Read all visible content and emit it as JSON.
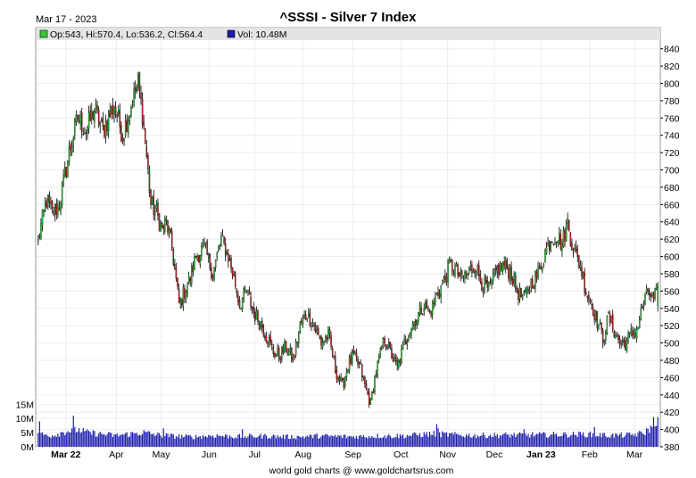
{
  "header": {
    "date": "Mar 17 - 2023",
    "title": "^SSSI - Silver 7 Index"
  },
  "legend": {
    "ohlc": "Op:543, Hi:570.4, Lo:536.2, Cl:564.4",
    "volume": "Vol: 10.48M"
  },
  "footer": "world gold charts @ www.goldchartsrus.com",
  "colors": {
    "up": "#33cc33",
    "down": "#cc2222",
    "volume": "#1a1aaa",
    "grid": "#e6eef4",
    "plot_bg": "#ffffff",
    "legend_bg": "#e4e4e4"
  },
  "chart_data": {
    "type": "candlestick",
    "title": "^SSSI - Silver 7 Index",
    "price_axis": {
      "min": 380,
      "max": 850,
      "ticks": [
        380,
        400,
        420,
        440,
        460,
        480,
        500,
        520,
        540,
        560,
        580,
        600,
        620,
        640,
        660,
        680,
        700,
        720,
        740,
        760,
        780,
        800,
        820,
        840
      ]
    },
    "volume_axis": {
      "min": 0,
      "max": 17000000,
      "ticks": [
        {
          "value": 0,
          "label": "0M"
        },
        {
          "value": 5000000,
          "label": "5M"
        },
        {
          "value": 10000000,
          "label": "10M"
        },
        {
          "value": 15000000,
          "label": "15M"
        }
      ]
    },
    "x_labels": [
      {
        "label": "Mar 22",
        "bold": true,
        "pos": 0.047
      },
      {
        "label": "Apr",
        "bold": false,
        "pos": 0.128
      },
      {
        "label": "May",
        "bold": false,
        "pos": 0.2
      },
      {
        "label": "Jun",
        "bold": false,
        "pos": 0.277
      },
      {
        "label": "Jul",
        "bold": false,
        "pos": 0.35
      },
      {
        "label": "Aug",
        "bold": false,
        "pos": 0.428
      },
      {
        "label": "Sep",
        "bold": false,
        "pos": 0.508
      },
      {
        "label": "Oct",
        "bold": false,
        "pos": 0.585
      },
      {
        "label": "Nov",
        "bold": false,
        "pos": 0.66
      },
      {
        "label": "Dec",
        "bold": false,
        "pos": 0.735
      },
      {
        "label": "Jan 23",
        "bold": true,
        "pos": 0.81
      },
      {
        "label": "Feb",
        "bold": false,
        "pos": 0.888
      },
      {
        "label": "Mar",
        "bold": false,
        "pos": 0.96
      }
    ],
    "close_path": [
      [
        0,
        620
      ],
      [
        6,
        665
      ],
      [
        10,
        650
      ],
      [
        15,
        660
      ],
      [
        22,
        720
      ],
      [
        28,
        760
      ],
      [
        34,
        745
      ],
      [
        40,
        770
      ],
      [
        46,
        745
      ],
      [
        54,
        775
      ],
      [
        60,
        740
      ],
      [
        67,
        780
      ],
      [
        71,
        800
      ],
      [
        74,
        765
      ],
      [
        77,
        715
      ],
      [
        80,
        660
      ],
      [
        84,
        650
      ],
      [
        88,
        630
      ],
      [
        91,
        640
      ],
      [
        95,
        610
      ],
      [
        100,
        545
      ],
      [
        104,
        560
      ],
      [
        108,
        575
      ],
      [
        112,
        600
      ],
      [
        118,
        610
      ],
      [
        124,
        580
      ],
      [
        130,
        620
      ],
      [
        135,
        600
      ],
      [
        139,
        575
      ],
      [
        143,
        545
      ],
      [
        148,
        560
      ],
      [
        153,
        535
      ],
      [
        159,
        520
      ],
      [
        163,
        505
      ],
      [
        167,
        490
      ],
      [
        171,
        485
      ],
      [
        176,
        495
      ],
      [
        181,
        480
      ],
      [
        186,
        520
      ],
      [
        191,
        535
      ],
      [
        196,
        520
      ],
      [
        201,
        500
      ],
      [
        206,
        510
      ],
      [
        211,
        470
      ],
      [
        216,
        450
      ],
      [
        220,
        475
      ],
      [
        224,
        485
      ],
      [
        229,
        470
      ],
      [
        233,
        445
      ],
      [
        236,
        430
      ],
      [
        239,
        460
      ],
      [
        242,
        480
      ],
      [
        246,
        505
      ],
      [
        250,
        490
      ],
      [
        255,
        470
      ],
      [
        260,
        500
      ],
      [
        265,
        520
      ],
      [
        269,
        530
      ],
      [
        274,
        545
      ],
      [
        278,
        535
      ],
      [
        283,
        555
      ],
      [
        288,
        570
      ],
      [
        292,
        590
      ],
      [
        296,
        585
      ],
      [
        300,
        575
      ],
      [
        305,
        580
      ],
      [
        310,
        590
      ],
      [
        315,
        570
      ],
      [
        320,
        560
      ],
      [
        326,
        585
      ],
      [
        331,
        590
      ],
      [
        336,
        580
      ],
      [
        340,
        560
      ],
      [
        345,
        550
      ],
      [
        350,
        570
      ],
      [
        355,
        580
      ],
      [
        360,
        605
      ],
      [
        364,
        620
      ],
      [
        368,
        625
      ],
      [
        372,
        615
      ],
      [
        376,
        640
      ],
      [
        379,
        615
      ],
      [
        382,
        600
      ],
      [
        385,
        590
      ],
      [
        389,
        560
      ],
      [
        393,
        545
      ],
      [
        397,
        525
      ],
      [
        401,
        505
      ],
      [
        405,
        530
      ],
      [
        409,
        515
      ],
      [
        413,
        500
      ],
      [
        417,
        500
      ],
      [
        421,
        510
      ],
      [
        425,
        515
      ],
      [
        429,
        540
      ],
      [
        433,
        560
      ],
      [
        437,
        550
      ],
      [
        440,
        564
      ]
    ],
    "volume_path": [
      [
        0,
        4.5
      ],
      [
        10,
        4
      ],
      [
        20,
        5.5
      ],
      [
        28,
        6
      ],
      [
        35,
        5
      ],
      [
        45,
        4.5
      ],
      [
        55,
        4
      ],
      [
        65,
        4.5
      ],
      [
        75,
        5
      ],
      [
        85,
        4.2
      ],
      [
        95,
        3.8
      ],
      [
        110,
        3.5
      ],
      [
        125,
        4
      ],
      [
        140,
        3.6
      ],
      [
        160,
        3.8
      ],
      [
        180,
        3.5
      ],
      [
        200,
        3.8
      ],
      [
        220,
        3.6
      ],
      [
        240,
        3.8
      ],
      [
        260,
        3.9
      ],
      [
        280,
        4.6
      ],
      [
        295,
        4.2
      ],
      [
        310,
        4
      ],
      [
        330,
        4.1
      ],
      [
        350,
        4.2
      ],
      [
        370,
        4.3
      ],
      [
        390,
        4.4
      ],
      [
        405,
        4
      ],
      [
        420,
        4.1
      ],
      [
        430,
        4.8
      ],
      [
        436,
        7
      ],
      [
        440,
        10.48
      ]
    ],
    "volume_spikes": [
      [
        1,
        9
      ],
      [
        25,
        11
      ],
      [
        26,
        7
      ],
      [
        89,
        6.5
      ],
      [
        145,
        6.2
      ],
      [
        283,
        8
      ],
      [
        284,
        6.5
      ],
      [
        345,
        6.2
      ],
      [
        395,
        7
      ],
      [
        436,
        7
      ],
      [
        437,
        10.48
      ]
    ],
    "bar_count": 441,
    "last_bar": {
      "open": 543,
      "high": 570.4,
      "low": 536.2,
      "close": 564.4,
      "volume": 10480000
    }
  }
}
